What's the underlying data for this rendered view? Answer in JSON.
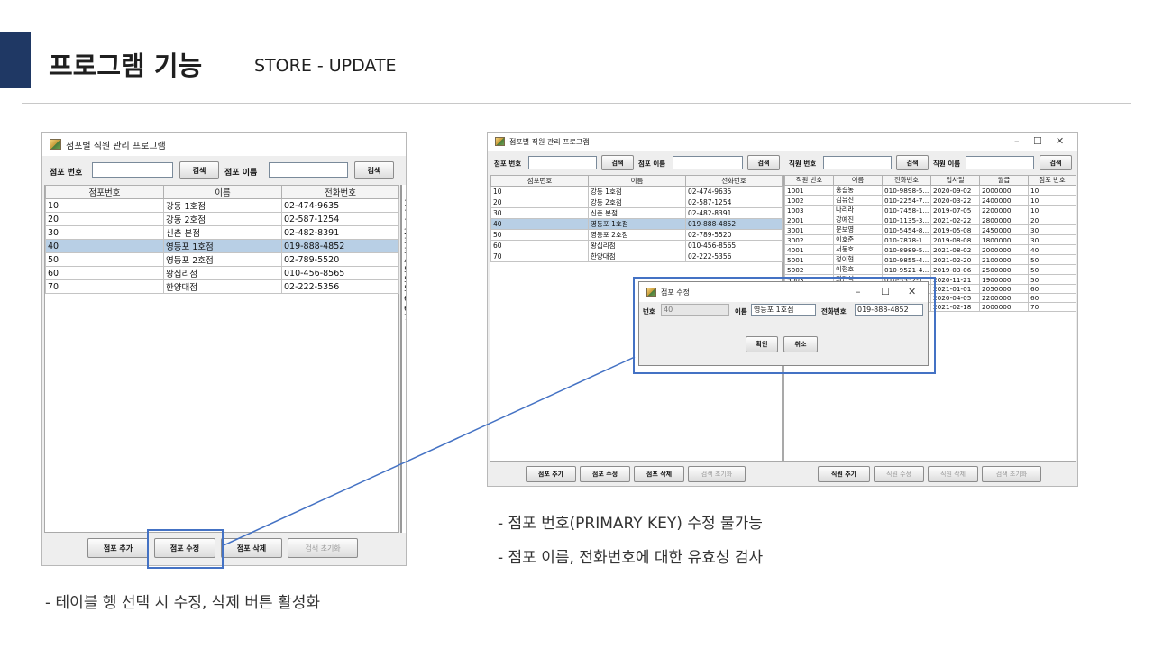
{
  "slide": {
    "title": "프로그램 기능",
    "subtitle": "STORE - UPDATE",
    "caption_left": "- 테이블 행  선택 시 수정, 삭제 버튼  활성화",
    "bullets": [
      "- 점포 번호(PRIMARY KEY) 수정 불가능",
      "- 점포 이름, 전화번호에 대한 유효성 검사"
    ]
  },
  "left_window": {
    "title": "점포별 직원 관리 프로그램",
    "store_no_label": "점포 번호",
    "store_name_label": "점포 이름",
    "search_btn": "검색",
    "columns": [
      "점포번호",
      "이름",
      "전화번호"
    ],
    "rows": [
      [
        "10",
        "강동 1호점",
        "02-474-9635",
        "1"
      ],
      [
        "20",
        "강동 2호점",
        "02-587-1254",
        "1"
      ],
      [
        "30",
        "신촌 본점",
        "02-482-8391",
        "1"
      ],
      [
        "40",
        "영등포 1호점",
        "019-888-4852",
        "2"
      ],
      [
        "50",
        "영등포 2호점",
        "02-789-5520",
        "3"
      ],
      [
        "60",
        "왕십리점",
        "010-456-8565",
        "3"
      ],
      [
        "70",
        "한양대점",
        "02-222-5356",
        "4"
      ]
    ],
    "side_digits": [
      "5",
      "5",
      "5",
      "6",
      "6",
      "7"
    ],
    "selected_index": 3,
    "buttons": {
      "add": "점포 추가",
      "edit": "점포 수정",
      "delete": "점포 삭제",
      "reset": "검색 초기화"
    }
  },
  "right_window": {
    "title": "점포별 직원 관리 프로그램",
    "store_no_label": "점포 번호",
    "store_name_label": "점포 이름",
    "emp_no_label": "직원 번호",
    "emp_name_label": "직원 이름",
    "search_btn": "검색",
    "store_columns": [
      "점포번호",
      "이름",
      "전화번호"
    ],
    "store_rows": [
      [
        "10",
        "강동 1호점",
        "02-474-9635"
      ],
      [
        "20",
        "강동 2호점",
        "02-587-1254"
      ],
      [
        "30",
        "신촌 본점",
        "02-482-8391"
      ],
      [
        "40",
        "영등포 1호점",
        "019-888-4852"
      ],
      [
        "50",
        "영등포 2호점",
        "02-789-5520"
      ],
      [
        "60",
        "왕십리점",
        "010-456-8565"
      ],
      [
        "70",
        "한양대점",
        "02-222-5356"
      ]
    ],
    "selected_index": 3,
    "emp_columns": [
      "직원 번호",
      "이름",
      "전화번호",
      "입사일",
      "월급",
      "점포 번호"
    ],
    "emp_rows": [
      [
        "1001",
        "홍길동",
        "010-9898-5...",
        "2020-09-02",
        "2000000",
        "10"
      ],
      [
        "1002",
        "김유진",
        "010-2254-7...",
        "2020-03-22",
        "2400000",
        "10"
      ],
      [
        "1003",
        "나리라",
        "010-7458-1...",
        "2019-07-05",
        "2200000",
        "10"
      ],
      [
        "2001",
        "강예진",
        "010-1135-3...",
        "2021-02-22",
        "2800000",
        "20"
      ],
      [
        "3001",
        "문보영",
        "010-5454-8...",
        "2019-05-08",
        "2450000",
        "30"
      ],
      [
        "3002",
        "이호준",
        "010-7878-1...",
        "2019-08-08",
        "1800000",
        "30"
      ],
      [
        "4001",
        "서동호",
        "010-8989-5...",
        "2021-08-02",
        "2000000",
        "40"
      ],
      [
        "5001",
        "정이현",
        "010-9855-4...",
        "2021-02-20",
        "2100000",
        "50"
      ],
      [
        "5002",
        "이현호",
        "010-9521-4...",
        "2019-03-06",
        "2500000",
        "50"
      ],
      [
        "5003",
        "최민석",
        "010-5552-1...",
        "2020-11-21",
        "1900000",
        "50"
      ],
      [
        "6001",
        "",
        "",
        "2021-01-01",
        "2050000",
        "60"
      ],
      [
        "6002",
        "",
        "",
        "2020-04-05",
        "2200000",
        "60"
      ],
      [
        "7001",
        "",
        "",
        "2021-02-18",
        "2000000",
        "70"
      ]
    ],
    "buttons": {
      "store_add": "점포 추가",
      "store_edit": "점포 수정",
      "store_delete": "점포 삭제",
      "store_reset": "검색 초기화",
      "emp_add": "직원 추가",
      "emp_edit": "직원 수정",
      "emp_delete": "직원 삭제",
      "emp_reset": "검색 초기화"
    }
  },
  "dialog": {
    "title": "점포 수정",
    "no_label": "번호",
    "no_value": "40",
    "name_label": "이름",
    "name_value": "영등포 1호점",
    "phone_label": "전화번호",
    "phone_value": "019-888-4852",
    "ok": "확인",
    "cancel": "취소"
  },
  "colors": {
    "accent_bar": "#1f3864",
    "callout": "#4472c4",
    "selection": "#b8cfe5"
  }
}
